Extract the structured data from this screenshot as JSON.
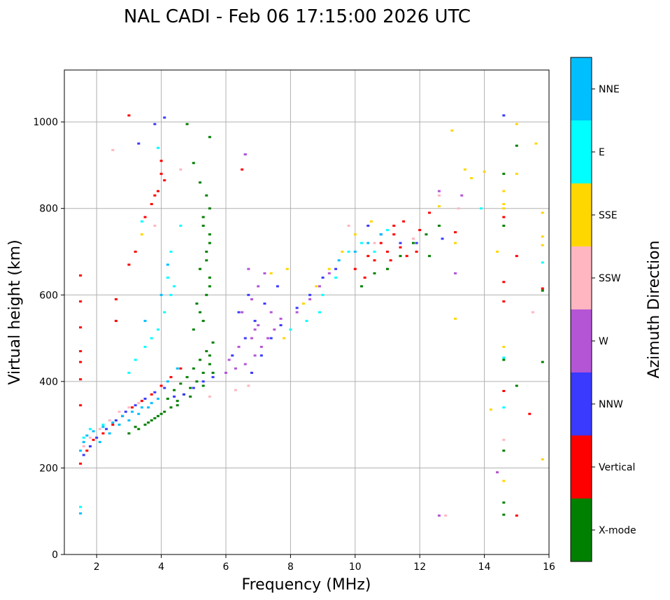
{
  "chart_data": {
    "type": "scatter",
    "title": "NAL CADI - Feb 06 17:15:00 2026 UTC",
    "xlabel": "Frequency (MHz)",
    "ylabel": "Virtual height (km)",
    "xlim": [
      1,
      16
    ],
    "ylim": [
      0,
      1120
    ],
    "xticks": [
      2,
      4,
      6,
      8,
      10,
      12,
      14,
      16
    ],
    "yticks": [
      0,
      200,
      400,
      600,
      800,
      1000
    ],
    "grid": true,
    "colorbar": {
      "label": "Azimuth Direction",
      "categories": [
        "X-mode",
        "Vertical",
        "NNW",
        "W",
        "SSW",
        "SSE",
        "E",
        "NNE"
      ],
      "colors": [
        "#008000",
        "#ff0000",
        "#3a3aff",
        "#b455d6",
        "#ffb6c1",
        "#ffd700",
        "#00ffff",
        "#00bfff"
      ]
    },
    "series": [
      {
        "name": "X-mode",
        "color": "#008000",
        "points": [
          [
            3.3,
            290
          ],
          [
            3.5,
            300
          ],
          [
            3.7,
            310
          ],
          [
            3.9,
            320
          ],
          [
            4.1,
            330
          ],
          [
            4.3,
            340
          ],
          [
            4.5,
            355
          ],
          [
            4.7,
            370
          ],
          [
            4.9,
            385
          ],
          [
            5.1,
            400
          ],
          [
            5.3,
            420
          ],
          [
            5.5,
            440
          ],
          [
            4.2,
            360
          ],
          [
            4.4,
            380
          ],
          [
            4.6,
            395
          ],
          [
            4.8,
            410
          ],
          [
            5.0,
            430
          ],
          [
            5.2,
            450
          ],
          [
            5.4,
            470
          ],
          [
            5.6,
            490
          ],
          [
            5.0,
            520
          ],
          [
            5.2,
            560
          ],
          [
            5.4,
            600
          ],
          [
            5.5,
            640
          ],
          [
            5.4,
            680
          ],
          [
            5.5,
            720
          ],
          [
            5.3,
            760
          ],
          [
            5.5,
            800
          ],
          [
            5.4,
            830
          ],
          [
            5.2,
            860
          ],
          [
            5.0,
            905
          ],
          [
            5.5,
            965
          ],
          [
            4.8,
            995
          ],
          [
            5.3,
            540
          ],
          [
            5.1,
            580
          ],
          [
            5.5,
            620
          ],
          [
            5.2,
            660
          ],
          [
            5.4,
            700
          ],
          [
            5.5,
            740
          ],
          [
            5.3,
            780
          ],
          [
            5.5,
            460
          ],
          [
            5.6,
            420
          ],
          [
            3.0,
            280
          ],
          [
            3.2,
            295
          ],
          [
            3.6,
            305
          ],
          [
            3.8,
            315
          ],
          [
            4.0,
            325
          ],
          [
            4.5,
            345
          ],
          [
            4.9,
            365
          ],
          [
            5.3,
            390
          ],
          [
            10.2,
            620
          ],
          [
            10.6,
            650
          ],
          [
            11.0,
            660
          ],
          [
            11.4,
            690
          ],
          [
            11.8,
            720
          ],
          [
            12.2,
            740
          ],
          [
            12.6,
            760
          ],
          [
            12.3,
            690
          ],
          [
            14.6,
            880
          ],
          [
            15.0,
            945
          ],
          [
            14.6,
            760
          ],
          [
            14.6,
            450
          ],
          [
            14.6,
            240
          ],
          [
            14.6,
            120
          ],
          [
            14.6,
            92
          ],
          [
            15.0,
            390
          ],
          [
            15.8,
            445
          ],
          [
            15.8,
            610
          ]
        ]
      },
      {
        "name": "Vertical",
        "color": "#ff0000",
        "points": [
          [
            1.5,
            210
          ],
          [
            1.5,
            345
          ],
          [
            1.5,
            405
          ],
          [
            1.5,
            445
          ],
          [
            1.5,
            470
          ],
          [
            1.5,
            525
          ],
          [
            1.5,
            585
          ],
          [
            1.5,
            645
          ],
          [
            1.7,
            240
          ],
          [
            1.9,
            265
          ],
          [
            2.2,
            280
          ],
          [
            2.5,
            300
          ],
          [
            2.8,
            320
          ],
          [
            3.1,
            340
          ],
          [
            3.4,
            355
          ],
          [
            3.7,
            370
          ],
          [
            4.0,
            390
          ],
          [
            4.3,
            410
          ],
          [
            4.6,
            430
          ],
          [
            2.6,
            540
          ],
          [
            2.6,
            590
          ],
          [
            3.0,
            670
          ],
          [
            3.2,
            700
          ],
          [
            3.5,
            780
          ],
          [
            3.7,
            810
          ],
          [
            3.9,
            840
          ],
          [
            4.0,
            880
          ],
          [
            4.0,
            910
          ],
          [
            4.1,
            865
          ],
          [
            3.8,
            830
          ],
          [
            3.0,
            1015
          ],
          [
            6.5,
            890
          ],
          [
            10.0,
            660
          ],
          [
            10.4,
            690
          ],
          [
            10.8,
            720
          ],
          [
            11.0,
            700
          ],
          [
            11.2,
            740
          ],
          [
            11.4,
            710
          ],
          [
            11.6,
            690
          ],
          [
            11.8,
            730
          ],
          [
            12.0,
            750
          ],
          [
            11.2,
            760
          ],
          [
            10.6,
            680
          ],
          [
            11.9,
            700
          ],
          [
            10.3,
            640
          ],
          [
            11.1,
            680
          ],
          [
            11.5,
            770
          ],
          [
            12.3,
            790
          ],
          [
            13.1,
            745
          ],
          [
            14.6,
            630
          ],
          [
            14.6,
            585
          ],
          [
            14.6,
            378
          ],
          [
            14.6,
            780
          ],
          [
            15.0,
            690
          ],
          [
            15.4,
            325
          ],
          [
            15.0,
            90
          ],
          [
            15.8,
            615
          ]
        ]
      },
      {
        "name": "NNW",
        "color": "#3a3aff",
        "points": [
          [
            1.6,
            230
          ],
          [
            1.8,
            250
          ],
          [
            2.0,
            270
          ],
          [
            2.3,
            290
          ],
          [
            2.6,
            310
          ],
          [
            2.9,
            330
          ],
          [
            3.2,
            345
          ],
          [
            3.5,
            360
          ],
          [
            3.8,
            375
          ],
          [
            4.1,
            385
          ],
          [
            4.4,
            365
          ],
          [
            4.7,
            370
          ],
          [
            5.0,
            385
          ],
          [
            5.3,
            400
          ],
          [
            5.6,
            410
          ],
          [
            6.2,
            460
          ],
          [
            6.6,
            500
          ],
          [
            6.9,
            540
          ],
          [
            7.2,
            580
          ],
          [
            7.6,
            620
          ],
          [
            6.8,
            420
          ],
          [
            7.1,
            460
          ],
          [
            7.4,
            500
          ],
          [
            7.7,
            530
          ],
          [
            8.2,
            570
          ],
          [
            8.6,
            600
          ],
          [
            9.0,
            640
          ],
          [
            9.4,
            660
          ],
          [
            6.4,
            560
          ],
          [
            6.7,
            600
          ],
          [
            4.1,
            1010
          ],
          [
            3.3,
            950
          ],
          [
            3.8,
            995
          ],
          [
            6.6,
            925
          ],
          [
            10.4,
            760
          ],
          [
            10.8,
            740
          ],
          [
            11.4,
            720
          ],
          [
            11.9,
            720
          ],
          [
            12.7,
            730
          ],
          [
            14.6,
            1015
          ]
        ]
      },
      {
        "name": "W",
        "color": "#b455d6",
        "points": [
          [
            6.0,
            420
          ],
          [
            6.3,
            430
          ],
          [
            6.6,
            440
          ],
          [
            6.9,
            460
          ],
          [
            7.1,
            480
          ],
          [
            7.3,
            500
          ],
          [
            7.5,
            520
          ],
          [
            7.7,
            545
          ],
          [
            6.8,
            500
          ],
          [
            7.0,
            530
          ],
          [
            6.5,
            560
          ],
          [
            6.8,
            590
          ],
          [
            7.0,
            620
          ],
          [
            7.2,
            650
          ],
          [
            6.7,
            660
          ],
          [
            8.2,
            560
          ],
          [
            8.6,
            590
          ],
          [
            8.9,
            620
          ],
          [
            9.2,
            650
          ],
          [
            6.1,
            450
          ],
          [
            6.4,
            480
          ],
          [
            6.9,
            520
          ],
          [
            7.4,
            560
          ],
          [
            6.6,
            925
          ],
          [
            12.6,
            840
          ],
          [
            13.3,
            830
          ],
          [
            13.1,
            650
          ],
          [
            14.4,
            190
          ],
          [
            12.6,
            90
          ]
        ]
      },
      {
        "name": "SSW",
        "color": "#ffb6c1",
        "points": [
          [
            1.6,
            250
          ],
          [
            1.8,
            270
          ],
          [
            2.1,
            290
          ],
          [
            2.4,
            310
          ],
          [
            2.7,
            330
          ],
          [
            3.0,
            340
          ],
          [
            3.3,
            350
          ],
          [
            2.5,
            935
          ],
          [
            3.8,
            760
          ],
          [
            4.6,
            890
          ],
          [
            5.5,
            365
          ],
          [
            6.3,
            380
          ],
          [
            6.7,
            390
          ],
          [
            9.8,
            760
          ],
          [
            10.6,
            720
          ],
          [
            11.8,
            730
          ],
          [
            12.6,
            830
          ],
          [
            13.2,
            800
          ],
          [
            15.5,
            560
          ],
          [
            14.6,
            265
          ],
          [
            12.8,
            90
          ]
        ]
      },
      {
        "name": "SSE",
        "color": "#ffd700",
        "points": [
          [
            3.4,
            740
          ],
          [
            7.8,
            500
          ],
          [
            8.4,
            580
          ],
          [
            8.8,
            620
          ],
          [
            9.2,
            660
          ],
          [
            9.6,
            700
          ],
          [
            10.0,
            740
          ],
          [
            10.5,
            770
          ],
          [
            7.4,
            650
          ],
          [
            7.9,
            660
          ],
          [
            13.0,
            980
          ],
          [
            13.4,
            890
          ],
          [
            13.6,
            870
          ],
          [
            14.0,
            885
          ],
          [
            12.6,
            805
          ],
          [
            13.1,
            720
          ],
          [
            13.1,
            545
          ],
          [
            14.6,
            840
          ],
          [
            14.6,
            810
          ],
          [
            14.6,
            800
          ],
          [
            14.6,
            480
          ],
          [
            14.6,
            170
          ],
          [
            15.0,
            995
          ],
          [
            15.0,
            880
          ],
          [
            15.6,
            950
          ],
          [
            15.8,
            790
          ],
          [
            15.8,
            735
          ],
          [
            15.8,
            715
          ],
          [
            15.8,
            220
          ],
          [
            14.2,
            335
          ],
          [
            14.4,
            700
          ]
        ]
      },
      {
        "name": "E",
        "color": "#00ffff",
        "points": [
          [
            1.6,
            270
          ],
          [
            1.8,
            290
          ],
          [
            2.2,
            300
          ],
          [
            3.0,
            420
          ],
          [
            3.2,
            450
          ],
          [
            3.5,
            480
          ],
          [
            3.7,
            500
          ],
          [
            3.9,
            520
          ],
          [
            4.1,
            560
          ],
          [
            4.3,
            600
          ],
          [
            4.4,
            620
          ],
          [
            4.2,
            640
          ],
          [
            4.3,
            700
          ],
          [
            4.6,
            760
          ],
          [
            3.9,
            940
          ],
          [
            3.4,
            770
          ],
          [
            8.0,
            520
          ],
          [
            8.5,
            540
          ],
          [
            8.9,
            560
          ],
          [
            9.0,
            600
          ],
          [
            9.4,
            640
          ],
          [
            9.8,
            700
          ],
          [
            10.2,
            720
          ],
          [
            10.6,
            700
          ],
          [
            11.0,
            750
          ],
          [
            15.8,
            675
          ],
          [
            14.6,
            340
          ],
          [
            14.6,
            455
          ],
          [
            13.9,
            800
          ],
          [
            1.5,
            110
          ]
        ]
      },
      {
        "name": "NNE",
        "color": "#00bfff",
        "points": [
          [
            1.5,
            240
          ],
          [
            1.6,
            260
          ],
          [
            1.7,
            275
          ],
          [
            1.9,
            285
          ],
          [
            2.2,
            295
          ],
          [
            2.5,
            305
          ],
          [
            2.8,
            320
          ],
          [
            3.1,
            330
          ],
          [
            3.4,
            340
          ],
          [
            3.7,
            350
          ],
          [
            1.5,
            95
          ],
          [
            2.1,
            260
          ],
          [
            2.4,
            280
          ],
          [
            2.7,
            300
          ],
          [
            3.0,
            310
          ],
          [
            3.3,
            325
          ],
          [
            3.6,
            340
          ],
          [
            3.9,
            360
          ],
          [
            4.2,
            400
          ],
          [
            4.5,
            430
          ],
          [
            3.5,
            540
          ],
          [
            4.0,
            600
          ],
          [
            4.2,
            670
          ],
          [
            9.5,
            680
          ],
          [
            10.0,
            700
          ],
          [
            10.4,
            720
          ],
          [
            10.8,
            740
          ]
        ]
      }
    ]
  }
}
